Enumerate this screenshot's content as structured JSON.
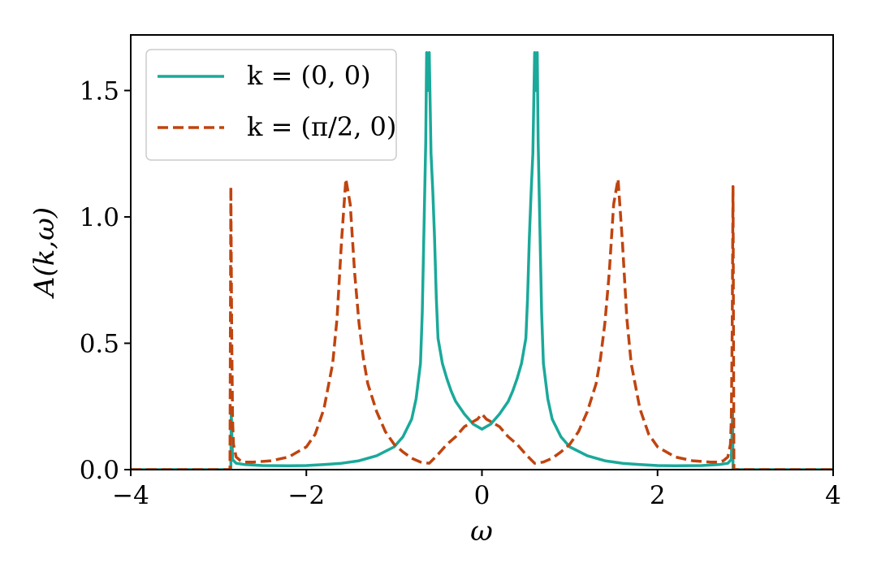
{
  "chart_data": {
    "type": "line",
    "title": "",
    "xlabel": "ω",
    "ylabel": "A(k,ω)",
    "xlim": [
      -4,
      4
    ],
    "ylim": [
      0,
      1.72
    ],
    "xticks": [
      -4,
      -2,
      0,
      2,
      4
    ],
    "xtick_labels": [
      "−4",
      "−2",
      "0",
      "2",
      "4"
    ],
    "yticks": [
      0.0,
      0.5,
      1.0,
      1.5
    ],
    "ytick_labels": [
      "0.0",
      "0.5",
      "1.0",
      "1.5"
    ],
    "grid": false,
    "legend_position": "top-left",
    "series": [
      {
        "name": "k = (0, 0)",
        "color": "#1aa99a",
        "dash": "solid",
        "x": [
          -4.0,
          -2.86,
          -2.855,
          -2.84,
          -2.8,
          -2.7,
          -2.5,
          -2.2,
          -2.0,
          -1.8,
          -1.6,
          -1.4,
          -1.2,
          -1.0,
          -0.9,
          -0.8,
          -0.75,
          -0.7,
          -0.68,
          -0.66,
          -0.64,
          -0.63,
          -0.62,
          -0.6,
          -0.58,
          -0.56,
          -0.54,
          -0.52,
          -0.5,
          -0.45,
          -0.4,
          -0.35,
          -0.3,
          -0.2,
          -0.1,
          0.0,
          0.1,
          0.2,
          0.3,
          0.35,
          0.4,
          0.45,
          0.5,
          0.52,
          0.54,
          0.56,
          0.58,
          0.6,
          0.62,
          0.63,
          0.64,
          0.66,
          0.68,
          0.7,
          0.75,
          0.8,
          0.9,
          1.0,
          1.2,
          1.4,
          1.6,
          1.8,
          2.0,
          2.2,
          2.5,
          2.7,
          2.8,
          2.84,
          2.855,
          2.86,
          4.0
        ],
        "y": [
          0.0,
          0.0,
          0.23,
          0.04,
          0.025,
          0.02,
          0.016,
          0.015,
          0.016,
          0.02,
          0.025,
          0.035,
          0.055,
          0.09,
          0.13,
          0.2,
          0.28,
          0.42,
          0.62,
          0.95,
          1.3,
          1.65,
          1.5,
          1.65,
          1.25,
          1.1,
          0.92,
          0.68,
          0.52,
          0.42,
          0.36,
          0.31,
          0.27,
          0.22,
          0.18,
          0.16,
          0.18,
          0.22,
          0.27,
          0.31,
          0.36,
          0.42,
          0.52,
          0.68,
          0.92,
          1.1,
          1.25,
          1.65,
          1.5,
          1.65,
          1.3,
          0.95,
          0.62,
          0.42,
          0.28,
          0.2,
          0.13,
          0.09,
          0.055,
          0.035,
          0.025,
          0.02,
          0.016,
          0.015,
          0.016,
          0.02,
          0.025,
          0.04,
          0.23,
          0.0,
          0.0
        ]
      },
      {
        "name": "k = (π/2, 0)",
        "color": "#c0440f",
        "dash": "dashed",
        "x": [
          -4.0,
          -2.87,
          -2.86,
          -2.85,
          -2.84,
          -2.83,
          -2.8,
          -2.75,
          -2.7,
          -2.6,
          -2.4,
          -2.2,
          -2.0,
          -1.9,
          -1.8,
          -1.7,
          -1.65,
          -1.6,
          -1.55,
          -1.5,
          -1.45,
          -1.4,
          -1.35,
          -1.3,
          -1.2,
          -1.1,
          -1.0,
          -0.9,
          -0.8,
          -0.7,
          -0.6,
          -0.5,
          -0.4,
          -0.3,
          -0.2,
          -0.1,
          -0.05,
          0.0,
          0.05,
          0.1,
          0.2,
          0.3,
          0.4,
          0.5,
          0.6,
          0.7,
          0.8,
          0.9,
          1.0,
          1.1,
          1.2,
          1.3,
          1.35,
          1.4,
          1.45,
          1.5,
          1.55,
          1.6,
          1.65,
          1.7,
          1.8,
          1.9,
          2.0,
          2.2,
          2.4,
          2.6,
          2.7,
          2.75,
          2.8,
          2.83,
          2.84,
          2.85,
          2.86,
          2.87,
          4.0
        ],
        "y": [
          0.0,
          0.0,
          1.12,
          0.55,
          0.2,
          0.1,
          0.05,
          0.035,
          0.03,
          0.03,
          0.035,
          0.05,
          0.09,
          0.14,
          0.24,
          0.42,
          0.6,
          0.9,
          1.15,
          1.05,
          0.78,
          0.58,
          0.44,
          0.34,
          0.23,
          0.15,
          0.1,
          0.07,
          0.045,
          0.03,
          0.025,
          0.06,
          0.1,
          0.13,
          0.17,
          0.19,
          0.2,
          0.22,
          0.2,
          0.19,
          0.17,
          0.13,
          0.1,
          0.06,
          0.025,
          0.03,
          0.045,
          0.07,
          0.1,
          0.15,
          0.23,
          0.34,
          0.44,
          0.58,
          0.78,
          1.05,
          1.15,
          0.9,
          0.6,
          0.42,
          0.24,
          0.14,
          0.09,
          0.05,
          0.035,
          0.03,
          0.03,
          0.035,
          0.05,
          0.1,
          0.2,
          0.55,
          1.12,
          0.0,
          0.0
        ]
      }
    ]
  }
}
